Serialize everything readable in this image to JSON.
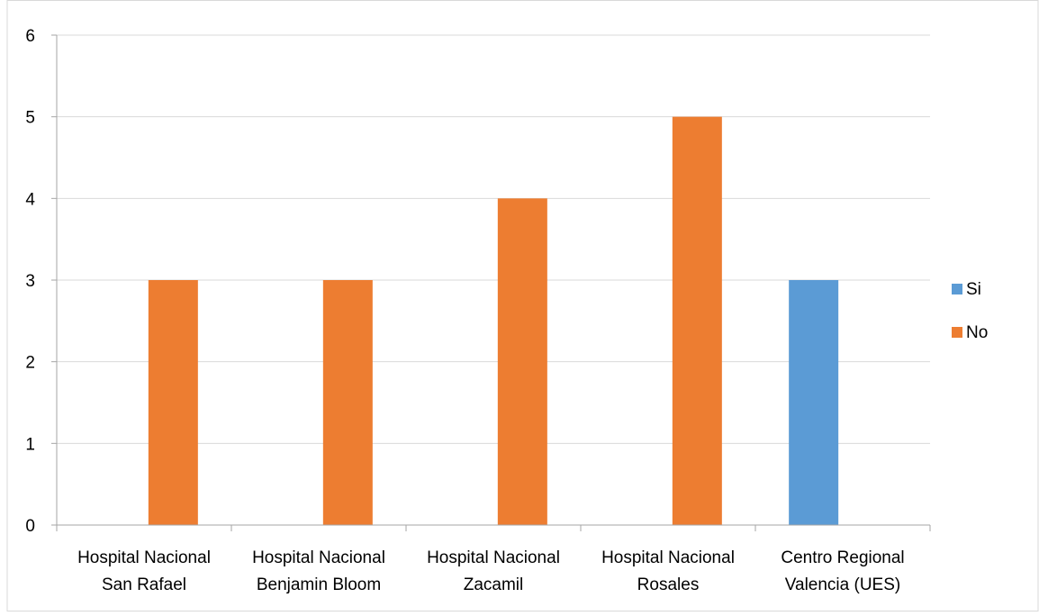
{
  "chart_data": {
    "type": "bar",
    "categories": [
      [
        "Hospital Nacional",
        "San Rafael"
      ],
      [
        "Hospital Nacional",
        "Benjamin Bloom"
      ],
      [
        "Hospital Nacional",
        "Zacamil"
      ],
      [
        "Hospital Nacional",
        "Rosales"
      ],
      [
        "Centro Regional",
        "Valencia (UES)"
      ]
    ],
    "series": [
      {
        "name": "Si",
        "color": "#5B9BD5",
        "values": [
          0,
          0,
          0,
          0,
          3
        ]
      },
      {
        "name": "No",
        "color": "#ED7D31",
        "values": [
          3,
          3,
          4,
          5,
          0
        ]
      }
    ],
    "ylim": [
      0,
      6
    ],
    "yticks": [
      0,
      1,
      2,
      3,
      4,
      5,
      6
    ],
    "grid": true,
    "legend_position": "right",
    "title": "",
    "xlabel": "",
    "ylabel": ""
  }
}
